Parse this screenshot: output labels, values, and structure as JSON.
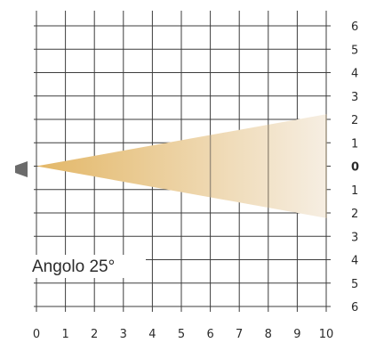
{
  "caption": "Angolo 25°",
  "x_ticks": [
    "0",
    "1",
    "2",
    "3",
    "4",
    "5",
    "6",
    "7",
    "8",
    "9",
    "10"
  ],
  "y_ticks": [
    "6",
    "5",
    "4",
    "3",
    "2",
    "1",
    "0",
    "1",
    "2",
    "3",
    "4",
    "5",
    "6"
  ],
  "beam": {
    "angle_deg": 25,
    "length_units": 10,
    "color_near": "#e3b767",
    "color_far": "#f6eee2"
  },
  "colors": {
    "grid": "#3d3d3d",
    "source": "#6b6b6b",
    "text": "#2b2b2b",
    "zero_label": "#000000"
  }
}
